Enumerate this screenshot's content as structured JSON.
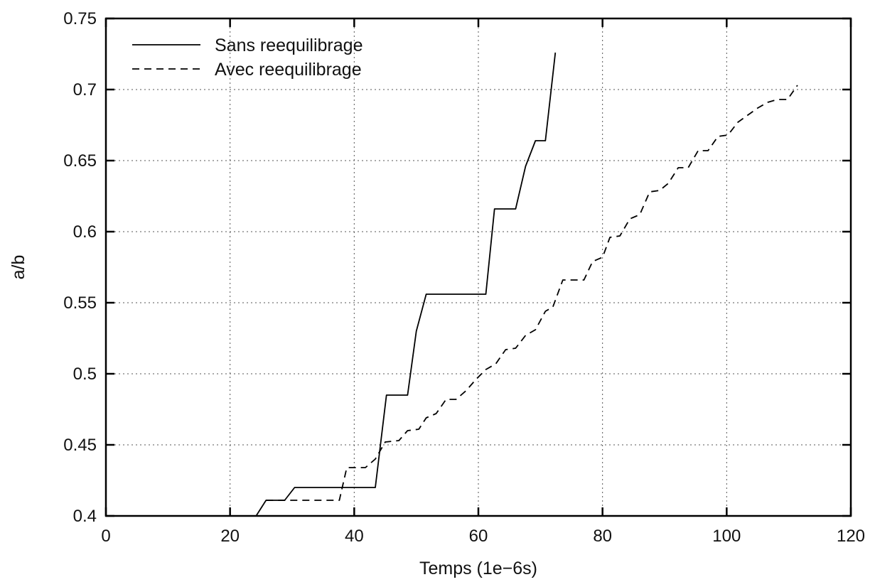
{
  "chart_data": {
    "type": "line",
    "xlabel": "Temps (1e−6s)",
    "ylabel": "a/b",
    "xlim": [
      0,
      120
    ],
    "ylim": [
      0.4,
      0.75
    ],
    "x_ticks": [
      0,
      20,
      40,
      60,
      80,
      100,
      120
    ],
    "x_tick_labels": [
      "0",
      "20",
      "40",
      "60",
      "80",
      "100",
      "120"
    ],
    "y_ticks": [
      0.4,
      0.45,
      0.5,
      0.55,
      0.6,
      0.65,
      0.7,
      0.75
    ],
    "y_tick_labels": [
      "0.4",
      "0.45",
      "0.5",
      "0.55",
      "0.6",
      "0.65",
      "0.7",
      "0.75"
    ],
    "grid": true,
    "legend_position": "top-left",
    "series": [
      {
        "name": "Sans reequilibrage",
        "style": "solid",
        "color": "#000000",
        "points": [
          [
            24.2,
            0.4
          ],
          [
            25.8,
            0.411
          ],
          [
            28.8,
            0.411
          ],
          [
            30.4,
            0.42
          ],
          [
            43.4,
            0.42
          ],
          [
            45.2,
            0.485
          ],
          [
            48.6,
            0.485
          ],
          [
            50.0,
            0.53
          ],
          [
            51.6,
            0.556
          ],
          [
            61.2,
            0.556
          ],
          [
            62.6,
            0.616
          ],
          [
            66.0,
            0.616
          ],
          [
            67.6,
            0.646
          ],
          [
            69.2,
            0.664
          ],
          [
            70.8,
            0.664
          ],
          [
            72.4,
            0.726
          ]
        ]
      },
      {
        "name": "Avec reequilibrage",
        "style": "dashed",
        "color": "#000000",
        "points": [
          [
            25.8,
            0.411
          ],
          [
            28.8,
            0.411
          ],
          [
            30.4,
            0.411
          ],
          [
            37.6,
            0.411
          ],
          [
            38.8,
            0.434
          ],
          [
            41.8,
            0.434
          ],
          [
            43.4,
            0.44
          ],
          [
            45.0,
            0.452
          ],
          [
            47.2,
            0.453
          ],
          [
            48.6,
            0.46
          ],
          [
            50.4,
            0.461
          ],
          [
            51.6,
            0.469
          ],
          [
            53.2,
            0.472
          ],
          [
            54.8,
            0.482
          ],
          [
            56.4,
            0.482
          ],
          [
            58.0,
            0.488
          ],
          [
            59.6,
            0.496
          ],
          [
            61.2,
            0.503
          ],
          [
            62.8,
            0.507
          ],
          [
            64.4,
            0.517
          ],
          [
            66.0,
            0.518
          ],
          [
            67.6,
            0.527
          ],
          [
            69.2,
            0.531
          ],
          [
            70.8,
            0.544
          ],
          [
            72.0,
            0.547
          ],
          [
            73.6,
            0.566
          ],
          [
            77.0,
            0.566
          ],
          [
            78.4,
            0.579
          ],
          [
            80.0,
            0.582
          ],
          [
            81.2,
            0.596
          ],
          [
            82.8,
            0.597
          ],
          [
            84.4,
            0.609
          ],
          [
            86.0,
            0.612
          ],
          [
            87.6,
            0.628
          ],
          [
            89.2,
            0.629
          ],
          [
            90.6,
            0.634
          ],
          [
            92.2,
            0.645
          ],
          [
            93.8,
            0.645
          ],
          [
            95.4,
            0.657
          ],
          [
            97.0,
            0.657
          ],
          [
            98.6,
            0.667
          ],
          [
            100.2,
            0.668
          ],
          [
            101.8,
            0.677
          ],
          [
            103.4,
            0.682
          ],
          [
            105.0,
            0.687
          ],
          [
            106.6,
            0.691
          ],
          [
            108.2,
            0.693
          ],
          [
            109.8,
            0.693
          ],
          [
            111.4,
            0.703
          ]
        ]
      }
    ]
  }
}
